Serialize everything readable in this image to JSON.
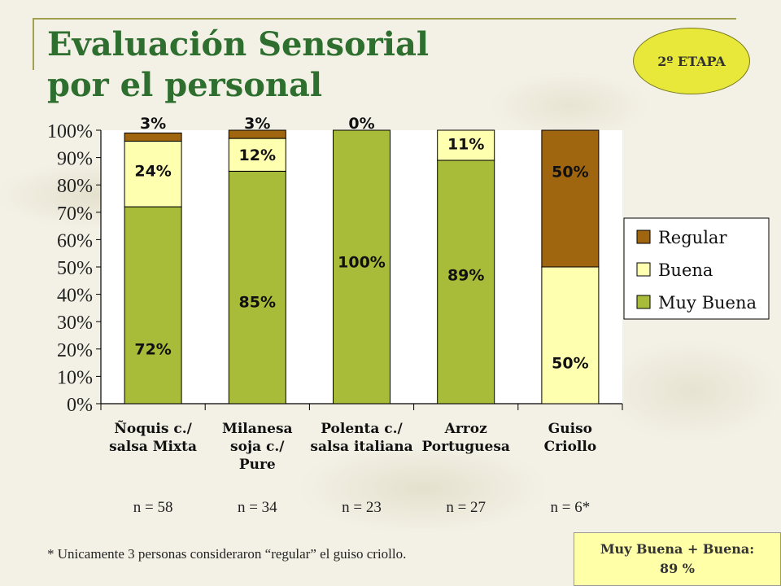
{
  "title_line1": "Evaluación Sensorial",
  "title_line2": "por el personal",
  "badge": "2º ETAPA",
  "footnote": "* Unicamente 3 personas consideraron  “regular” el guiso criollo.",
  "summary": {
    "line1": "Muy Buena + Buena:",
    "line2": "89 %"
  },
  "colors": {
    "regular": "#a0650f",
    "buena": "#ffffb0",
    "muy_buena": "#a8bc3a"
  },
  "chart_data": {
    "type": "bar",
    "stacked": true,
    "percent": true,
    "categories": [
      [
        "Ñoquis c./",
        "salsa Mixta"
      ],
      [
        "Milanesa",
        "soja c./",
        "Pure"
      ],
      [
        "Polenta c./",
        "salsa italiana"
      ],
      [
        "Arroz",
        "Portuguesa"
      ],
      [
        "Guiso",
        "Criollo"
      ]
    ],
    "sample_sizes": [
      "n = 58",
      "n = 34",
      "n = 23",
      "n = 27",
      "n = 6*"
    ],
    "series": [
      {
        "name": "Muy Buena",
        "values": [
          72,
          85,
          100,
          89,
          0
        ],
        "labels": [
          "72%",
          "85%",
          "100%",
          "89%",
          ""
        ]
      },
      {
        "name": "Buena",
        "values": [
          24,
          12,
          0,
          11,
          50
        ],
        "labels": [
          "24%",
          "12%",
          "",
          "11%",
          "50%"
        ]
      },
      {
        "name": "Regular",
        "values": [
          3,
          3,
          0,
          0,
          50
        ],
        "labels": [
          "3%",
          "3%",
          "0%",
          "",
          "50%"
        ]
      }
    ],
    "y_ticks": [
      "0%",
      "10%",
      "20%",
      "30%",
      "40%",
      "50%",
      "60%",
      "70%",
      "80%",
      "90%",
      "100%"
    ],
    "ylim": [
      0,
      100
    ],
    "legend": [
      "Regular",
      "Buena",
      "Muy Buena"
    ],
    "legend_position": "right"
  }
}
